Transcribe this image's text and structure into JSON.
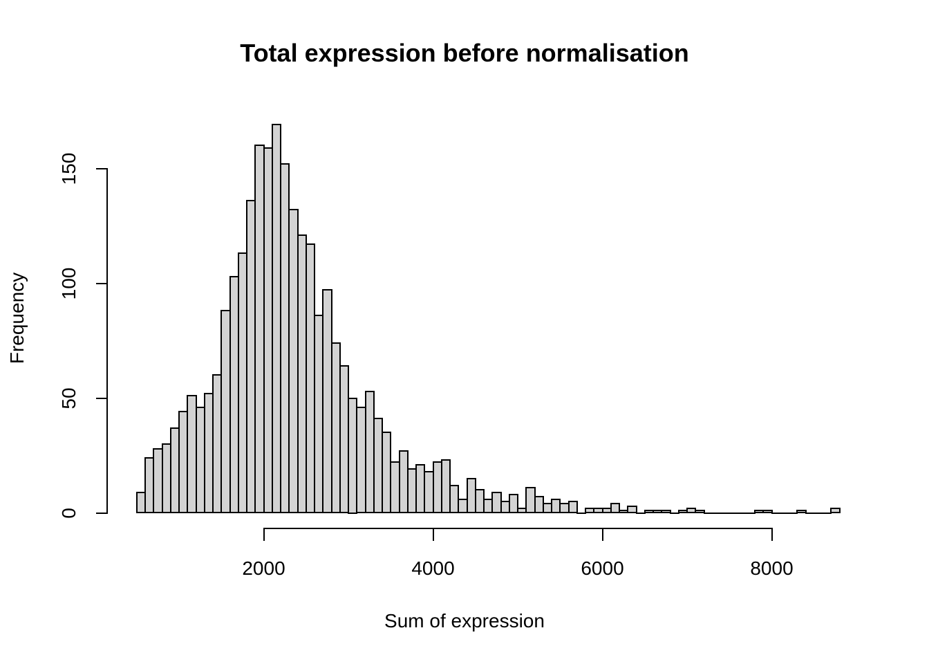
{
  "chart_data": {
    "type": "bar",
    "subtype": "histogram",
    "title": "Total expression before normalisation",
    "xlabel": "Sum of expression",
    "ylabel": "Frequency",
    "x_ticks": [
      2000,
      4000,
      6000,
      8000
    ],
    "y_ticks": [
      0,
      50,
      100,
      150
    ],
    "bin_start": 500,
    "bin_width": 100,
    "frequencies": [
      9,
      24,
      28,
      30,
      37,
      44,
      51,
      46,
      52,
      60,
      88,
      103,
      113,
      136,
      160,
      159,
      169,
      152,
      132,
      121,
      117,
      86,
      97,
      74,
      64,
      50,
      46,
      53,
      41,
      35,
      22,
      27,
      19,
      21,
      18,
      22,
      23,
      12,
      6,
      15,
      10,
      6,
      9,
      5,
      8,
      2,
      11,
      7,
      4,
      6,
      4,
      5,
      0,
      2,
      2,
      2,
      4,
      1,
      3,
      0,
      1,
      1,
      1,
      0,
      1,
      2,
      1,
      0,
      0,
      0,
      0,
      0,
      0,
      1,
      1,
      0,
      0,
      0,
      1,
      0,
      0,
      0,
      2
    ],
    "xlim": [
      500,
      8800
    ],
    "ylim": [
      0,
      169
    ],
    "grid": false,
    "legend": null,
    "colors": {
      "bar_fill": "#d3d3d3",
      "bar_border": "#000000",
      "axis": "#000000",
      "text": "#000000",
      "background": "#ffffff"
    }
  }
}
